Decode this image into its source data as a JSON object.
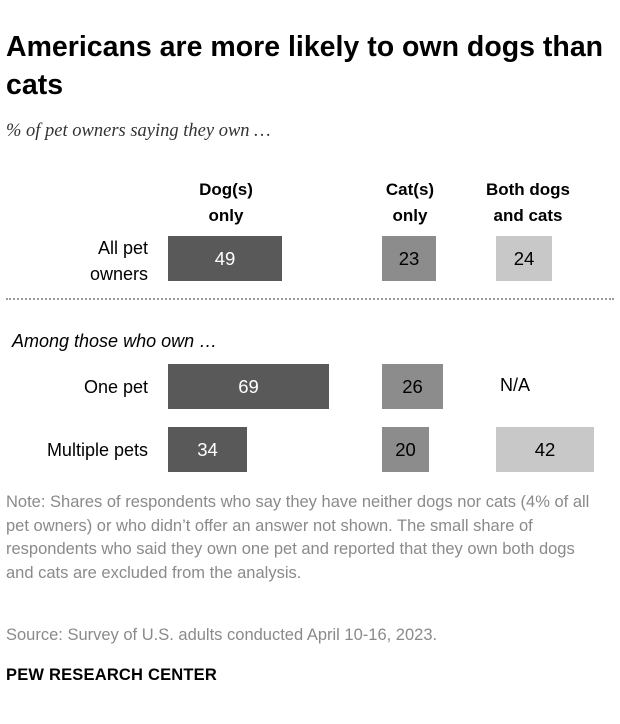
{
  "title": "Americans are more likely to own dogs than cats",
  "subtitle": "% of pet owners saying they own …",
  "section_label": "Among those who own …",
  "note": "Note: Shares of respondents who say they have neither dogs nor cats (4% of all pet owners) or who didn’t offer an answer not shown. The small share of respondents who said they own one pet and reported that they own both dogs and cats are excluded from the analysis.",
  "source": "Source: Survey of U.S. adults conducted April 10-16, 2023.",
  "brand": "PEW RESEARCH CENTER",
  "colors": {
    "dogs": "#595959",
    "cats": "#8c8c8c",
    "both": "#c8c8c8"
  },
  "chart_data": {
    "type": "bar",
    "title": "Americans are more likely to own dogs than cats",
    "subtitle": "% of pet owners saying they own …",
    "categories": [
      "All pet owners",
      "One pet",
      "Multiple pets"
    ],
    "series": [
      {
        "name": "Dog(s) only",
        "values": [
          49,
          69,
          34
        ],
        "labels": [
          "49",
          "69",
          "34"
        ]
      },
      {
        "name": "Cat(s) only",
        "values": [
          23,
          26,
          20
        ],
        "labels": [
          "23",
          "26",
          "20"
        ]
      },
      {
        "name": "Both dogs and cats",
        "values": [
          24,
          null,
          42
        ],
        "labels": [
          "24",
          "N/A",
          "42"
        ]
      }
    ]
  },
  "headers": {
    "dogs": [
      "Dog(s)",
      "only"
    ],
    "cats": [
      "Cat(s)",
      "only"
    ],
    "both": [
      "Both dogs",
      "and cats"
    ]
  },
  "row_labels": {
    "all": [
      "All pet",
      "owners"
    ],
    "one": [
      "One pet"
    ],
    "multiple": [
      "Multiple pets"
    ]
  }
}
